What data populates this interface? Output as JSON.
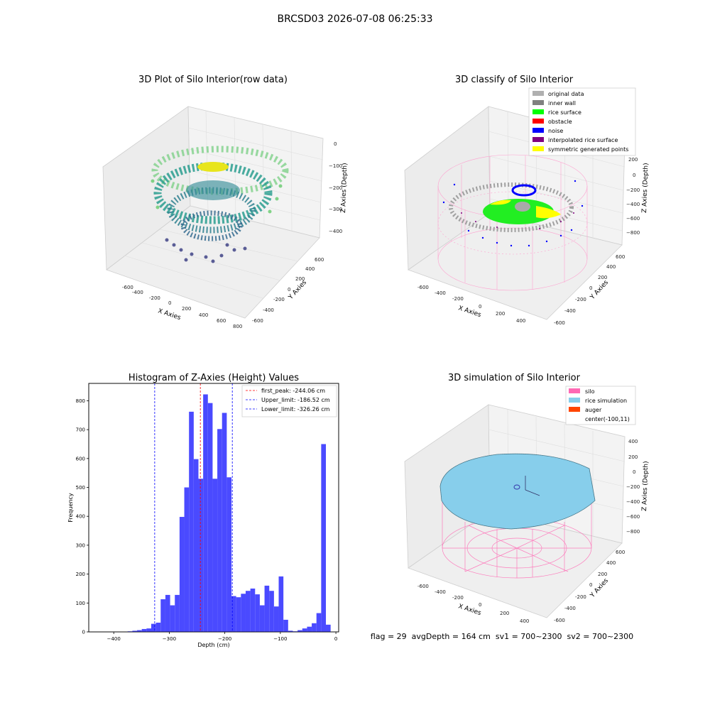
{
  "suptitle": "BRCSD03 2026-07-08 06:25:33",
  "panel_raw": {
    "title": "3D Plot of Silo Interior(row data)",
    "xlabel": "X Axies",
    "ylabel": "Y Axies",
    "zlabel": "Z Axies (Depth)",
    "xticks": [
      "-600",
      "-400",
      "-200",
      "0",
      "200",
      "400",
      "600",
      "800"
    ],
    "yticks": [
      "-600",
      "-400",
      "-200",
      "0",
      "200",
      "400",
      "600"
    ],
    "zticks": [
      "0",
      "−100",
      "−200",
      "−300",
      "−400"
    ]
  },
  "panel_classify": {
    "title": "3D classify of Silo Interior",
    "xlabel": "X Axies",
    "ylabel": "Y Axies",
    "zlabel": "Z Axies (Depth)",
    "xticks": [
      "-600",
      "-400",
      "-200",
      "0",
      "200",
      "400"
    ],
    "yticks": [
      "-600",
      "-400",
      "-200",
      "0",
      "200",
      "400",
      "600"
    ],
    "zticks": [
      "200",
      "0",
      "−200",
      "−400",
      "−600",
      "−800"
    ],
    "legend": [
      {
        "label": "original data",
        "color": "#b0b0b0"
      },
      {
        "label": "inner wall",
        "color": "#808080"
      },
      {
        "label": "rice surface",
        "color": "#00ff00"
      },
      {
        "label": "obstacle",
        "color": "#ff0000"
      },
      {
        "label": "noise",
        "color": "#0000ff"
      },
      {
        "label": "interpolated rice surface",
        "color": "#800080"
      },
      {
        "label": "symmetric generated points",
        "color": "#ffff00"
      }
    ]
  },
  "panel_sim": {
    "title": "3D simulation of Silo Interior",
    "xlabel": "X Axies",
    "ylabel": "Y Axies",
    "zlabel": "Z Axies (Depth)",
    "xticks": [
      "-600",
      "-400",
      "-200",
      "0",
      "200",
      "400"
    ],
    "yticks": [
      "-600",
      "-400",
      "-200",
      "0",
      "200",
      "400",
      "600"
    ],
    "zticks": [
      "400",
      "200",
      "0",
      "−200",
      "−400",
      "−600",
      "−800"
    ],
    "legend": [
      {
        "label": "silo",
        "color": "#ff69b4"
      },
      {
        "label": "rice simulation",
        "color": "#87ceeb"
      },
      {
        "label": "auger",
        "color": "#ff4500"
      },
      {
        "label": "center(-100,11)",
        "color": ""
      }
    ],
    "status": "flag = 29  avgDepth = 164 cm  sv1 = 700~2300  sv2 = 700~2300"
  },
  "chart_data": [
    {
      "type": "bar",
      "title": "Histogram of Z-Axies (Height) Values",
      "xlabel": "Depth (cm)",
      "ylabel": "Frequency",
      "xlim": [
        -445,
        5
      ],
      "ylim": [
        0,
        860
      ],
      "xticks": [
        -400,
        -300,
        -200,
        -100,
        0
      ],
      "yticks": [
        0,
        100,
        200,
        300,
        400,
        500,
        600,
        700,
        800
      ],
      "bin_width": 8.5,
      "bins": [
        {
          "x": -375,
          "v": 2
        },
        {
          "x": -366.5,
          "v": 4
        },
        {
          "x": -358,
          "v": 6
        },
        {
          "x": -349.5,
          "v": 10
        },
        {
          "x": -341,
          "v": 12
        },
        {
          "x": -332.5,
          "v": 28
        },
        {
          "x": -324,
          "v": 32
        },
        {
          "x": -315.5,
          "v": 113
        },
        {
          "x": -307,
          "v": 128
        },
        {
          "x": -298.5,
          "v": 92
        },
        {
          "x": -290,
          "v": 128
        },
        {
          "x": -281.5,
          "v": 398
        },
        {
          "x": -273,
          "v": 500
        },
        {
          "x": -264.5,
          "v": 762
        },
        {
          "x": -256,
          "v": 598
        },
        {
          "x": -247.5,
          "v": 530
        },
        {
          "x": -239,
          "v": 822
        },
        {
          "x": -230.5,
          "v": 792
        },
        {
          "x": -222,
          "v": 530
        },
        {
          "x": -213.5,
          "v": 702
        },
        {
          "x": -205,
          "v": 758
        },
        {
          "x": -196.5,
          "v": 535
        },
        {
          "x": -188,
          "v": 124
        },
        {
          "x": -179.5,
          "v": 120
        },
        {
          "x": -171,
          "v": 132
        },
        {
          "x": -162.5,
          "v": 142
        },
        {
          "x": -154,
          "v": 150
        },
        {
          "x": -145.5,
          "v": 130
        },
        {
          "x": -137,
          "v": 92
        },
        {
          "x": -128.5,
          "v": 160
        },
        {
          "x": -120,
          "v": 142
        },
        {
          "x": -111.5,
          "v": 88
        },
        {
          "x": -103,
          "v": 192
        },
        {
          "x": -94.5,
          "v": 42
        },
        {
          "x": -86,
          "v": 4
        },
        {
          "x": -77.5,
          "v": 2
        },
        {
          "x": -69,
          "v": 6
        },
        {
          "x": -60.5,
          "v": 12
        },
        {
          "x": -52,
          "v": 18
        },
        {
          "x": -43.5,
          "v": 30
        },
        {
          "x": -35,
          "v": 65
        },
        {
          "x": -26.5,
          "v": 650
        },
        {
          "x": -18,
          "v": 25
        }
      ],
      "vlines": [
        {
          "x": -244.06,
          "label": "first_peak: -244.06 cm",
          "color": "#ff0000"
        },
        {
          "x": -186.52,
          "label": "Upper_limit: -186.52 cm",
          "color": "#0000ff"
        },
        {
          "x": -326.26,
          "label": "Lower_limit: -326.26 cm",
          "color": "#0000ff"
        }
      ],
      "bar_color": "#4a4aff"
    }
  ]
}
